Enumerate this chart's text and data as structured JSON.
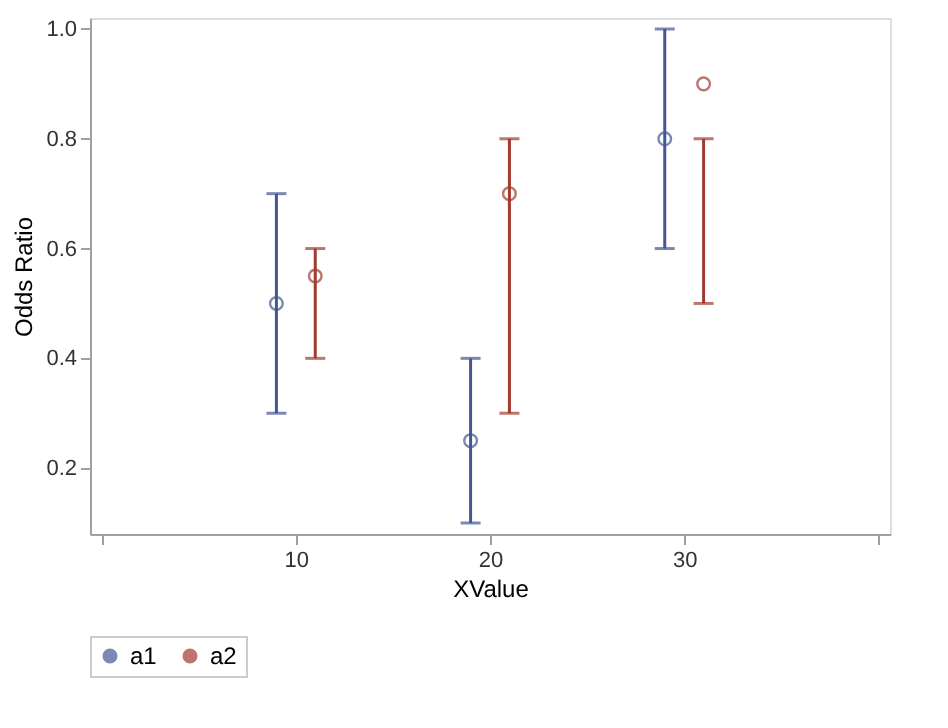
{
  "chart_data": {
    "type": "scatter",
    "xlabel": "XValue",
    "ylabel": "Odds Ratio",
    "series": [
      {
        "name": "a1",
        "color": "#445694",
        "x": [
          9,
          19,
          29
        ],
        "values": [
          0.5,
          0.25,
          0.8
        ],
        "errors": [
          [
            0.3,
            0.7
          ],
          [
            0.1,
            0.4
          ],
          [
            0.6,
            1.0
          ]
        ]
      },
      {
        "name": "a2",
        "color": "#a23a2e",
        "x": [
          11,
          21,
          31
        ],
        "values": [
          0.55,
          0.7,
          0.9
        ],
        "errors": [
          [
            0.4,
            0.6
          ],
          [
            0.3,
            0.8
          ],
          [
            0.5,
            0.8
          ]
        ]
      }
    ],
    "xlim": [
      -0.6,
      40.6
    ],
    "xticks": [
      {
        "value": 0,
        "label": null
      },
      10,
      20,
      30,
      {
        "value": 40,
        "label": null
      }
    ],
    "ylim": [
      0.08,
      1.02
    ],
    "yticks": [
      0.2,
      0.4,
      0.6,
      0.8,
      {
        "value": 1,
        "label": "1.0"
      }
    ],
    "marker": "circle",
    "grid": false,
    "legend": "bottom"
  }
}
